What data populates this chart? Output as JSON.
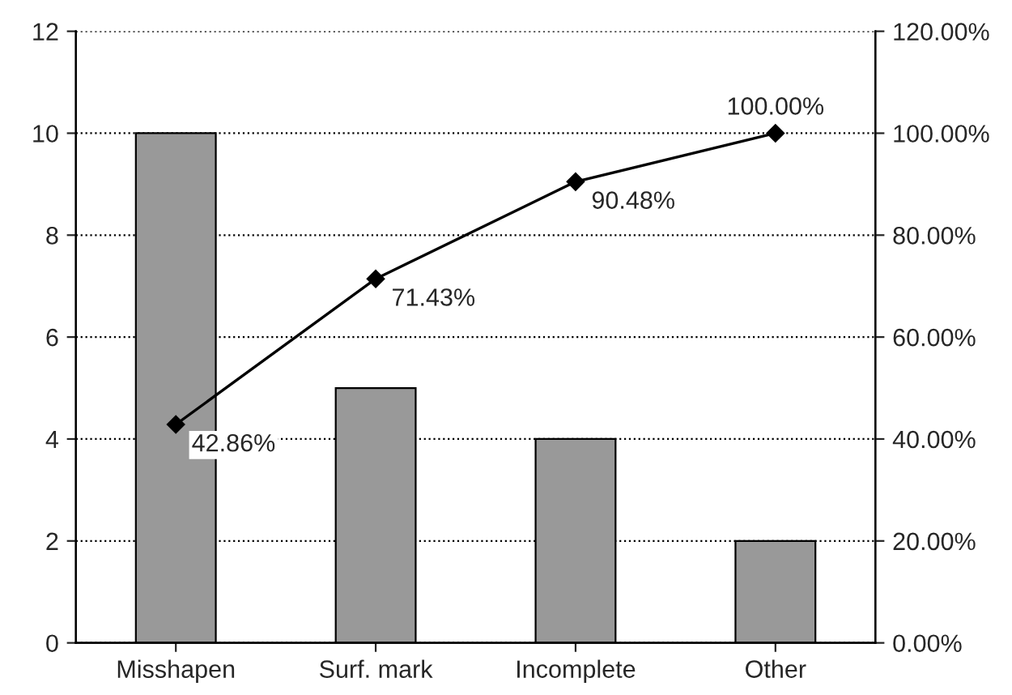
{
  "chart_data": {
    "type": "bar",
    "categories": [
      "Misshapen",
      "Surf. mark",
      "Incomplete",
      "Other"
    ],
    "series": [
      {
        "color": "#999999",
        "values": [
          10,
          5,
          4,
          2
        ]
      },
      {
        "type": "line",
        "axis": "y2",
        "color": "#000000",
        "marker": "diamond",
        "values": [
          42.86,
          71.43,
          90.48,
          100
        ],
        "value_labels": [
          "42.86%",
          "71.43%",
          "90.48%",
          "100.00%"
        ]
      }
    ],
    "ylim": [
      0,
      12
    ],
    "yticks": [
      0,
      2,
      4,
      6,
      8,
      10,
      12
    ],
    "y2lim": [
      0,
      120
    ],
    "y2ticks": [
      {
        "value": 0,
        "label": "0.00%"
      },
      {
        "value": 20,
        "label": "20.00%"
      },
      {
        "value": 40,
        "label": "40.00%"
      },
      {
        "value": 60,
        "label": "60.00%"
      },
      {
        "value": 80,
        "label": "80.00%"
      },
      {
        "value": 100,
        "label": "100.00%"
      },
      {
        "value": 120,
        "label": "120.00%"
      }
    ],
    "grid": "y",
    "legend": false
  }
}
